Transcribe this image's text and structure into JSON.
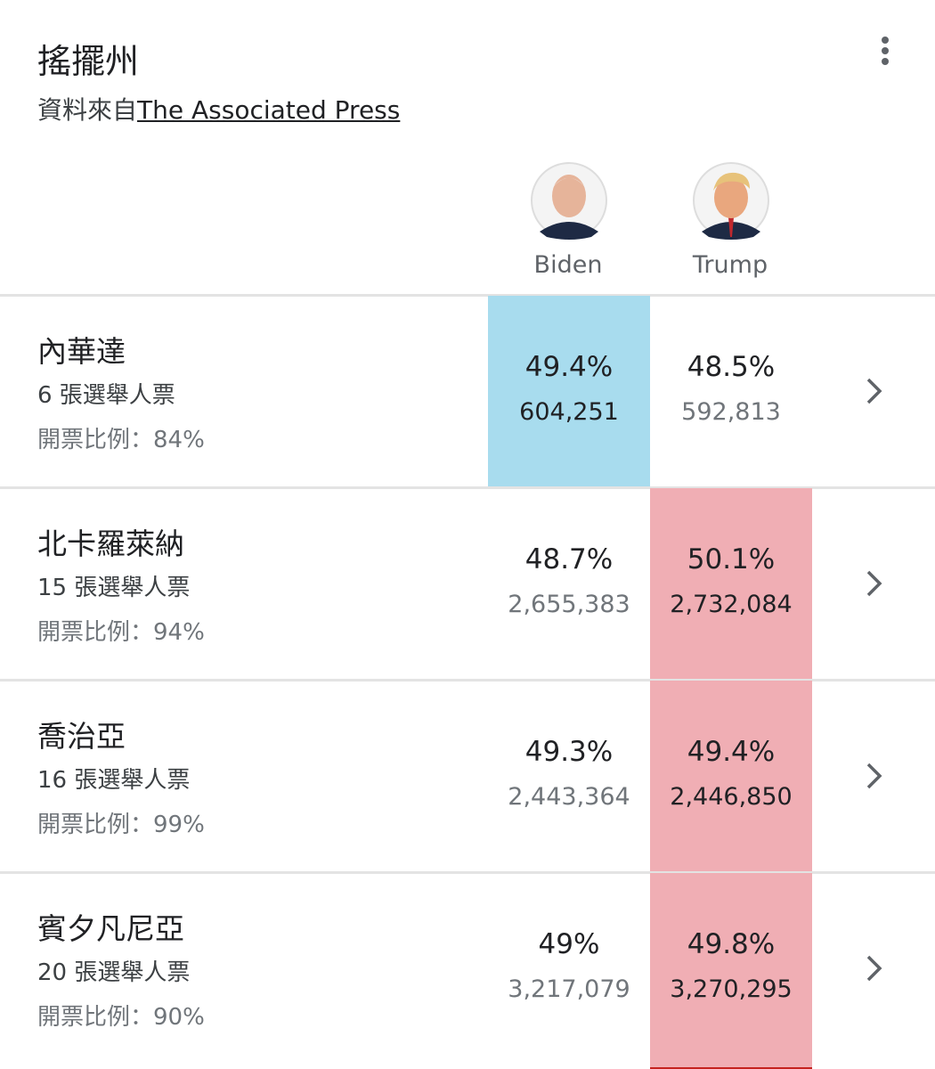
{
  "header": {
    "title": "搖擺州",
    "source_prefix": "資料來自",
    "source_link": "The Associated Press"
  },
  "candidates": [
    {
      "name": "Biden",
      "color": "#a8dcee"
    },
    {
      "name": "Trump",
      "color": "#f0aeb4"
    }
  ],
  "rows": [
    {
      "state": "內華達",
      "electors": "6 張選舉人票",
      "reporting": "開票比例：84%",
      "results": [
        {
          "pct": "49.4%",
          "votes": "604,251"
        },
        {
          "pct": "48.5%",
          "votes": "592,813"
        }
      ]
    },
    {
      "state": "北卡羅萊納",
      "electors": "15 張選舉人票",
      "reporting": "開票比例：94%",
      "results": [
        {
          "pct": "48.7%",
          "votes": "2,655,383"
        },
        {
          "pct": "50.1%",
          "votes": "2,732,084"
        }
      ]
    },
    {
      "state": "喬治亞",
      "electors": "16 張選舉人票",
      "reporting": "開票比例：99%",
      "results": [
        {
          "pct": "49.3%",
          "votes": "2,443,364"
        },
        {
          "pct": "49.4%",
          "votes": "2,446,850"
        }
      ]
    },
    {
      "state": "賓夕凡尼亞",
      "electors": "20 張選舉人票",
      "reporting": "開票比例：90%",
      "results": [
        {
          "pct": "49%",
          "votes": "3,217,079"
        },
        {
          "pct": "49.8%",
          "votes": "3,270,295"
        }
      ]
    }
  ]
}
